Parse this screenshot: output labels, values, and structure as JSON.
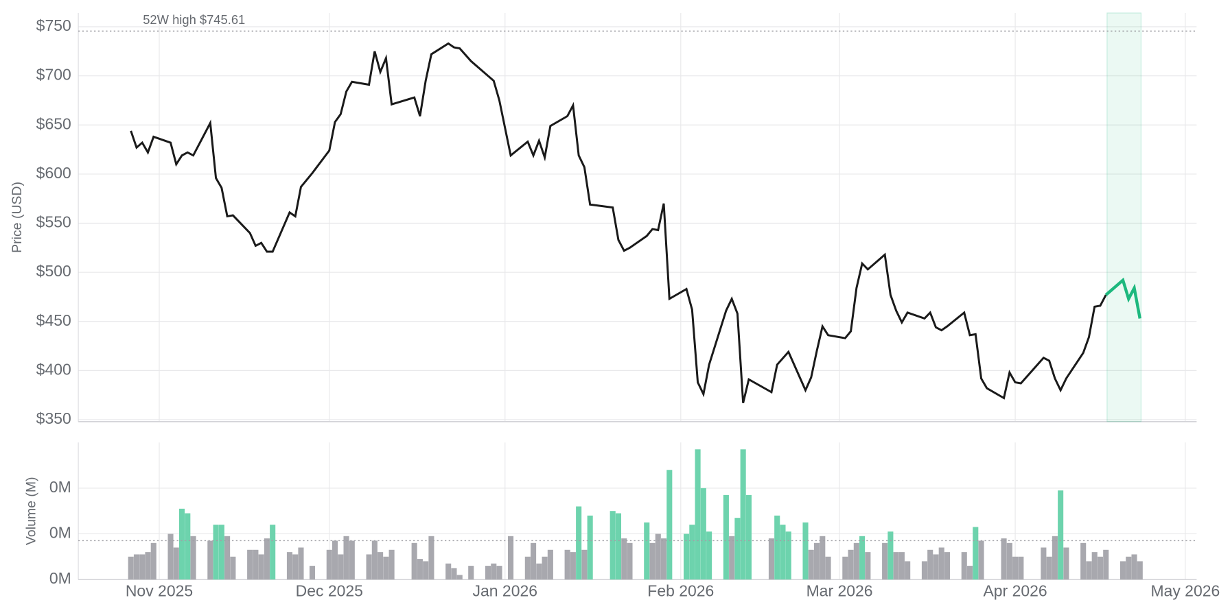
{
  "chart_data": [
    {
      "type": "line",
      "y_label": "Price (USD)",
      "xlim": [
        -14,
        183
      ],
      "xticks": [
        {
          "value": 0,
          "label": "Nov 2025"
        },
        {
          "value": 30,
          "label": "Dec 2025"
        },
        {
          "value": 61,
          "label": "Jan 2026"
        },
        {
          "value": 92,
          "label": "Feb 2026"
        },
        {
          "value": 120,
          "label": "Mar 2026"
        },
        {
          "value": 151,
          "label": "Apr 2026"
        },
        {
          "value": 181,
          "label": "May 2026"
        }
      ],
      "ylim": [
        348,
        764
      ],
      "yticks": [
        {
          "value": 350,
          "label": "$350"
        },
        {
          "value": 400,
          "label": "$400"
        },
        {
          "value": 450,
          "label": "$450"
        },
        {
          "value": 500,
          "label": "$500"
        },
        {
          "value": 550,
          "label": "$550"
        },
        {
          "value": 600,
          "label": "$600"
        },
        {
          "value": 650,
          "label": "$650"
        },
        {
          "value": 700,
          "label": "$700"
        },
        {
          "value": 750,
          "label": "$750"
        }
      ],
      "grid": true,
      "annotation": {
        "text": "52W high $745.61",
        "value": 745.61
      },
      "highlight_x": [
        167.2,
        173.2
      ],
      "series": [
        {
          "color": "#1a1a1a",
          "x": [
            -5,
            -4,
            -3,
            -2,
            -1,
            2,
            3,
            4,
            5,
            6,
            9,
            10,
            11,
            12,
            13,
            16,
            17,
            18,
            19,
            20,
            23,
            24,
            25,
            27,
            30,
            31,
            32,
            33,
            34,
            37,
            38,
            39,
            40,
            41,
            45,
            46,
            47,
            48,
            51,
            52,
            53,
            55,
            59,
            60,
            62,
            65,
            66,
            67,
            68,
            69,
            72,
            73,
            74,
            75,
            76,
            80,
            81,
            82,
            83,
            86,
            87,
            88,
            89,
            90,
            93,
            94,
            95,
            96,
            97,
            100,
            101,
            102,
            103,
            104,
            108,
            109,
            111,
            114,
            115,
            116,
            117,
            118,
            121,
            122,
            123,
            124,
            125,
            128,
            129,
            130,
            131,
            132,
            135,
            136,
            137,
            138,
            139,
            142,
            143,
            144,
            145,
            146,
            149,
            150,
            151,
            152,
            156,
            157,
            158,
            159,
            160,
            163,
            164,
            165,
            166,
            167
          ],
          "values": [
            644,
            627,
            632,
            622,
            638,
            632,
            610,
            619,
            622,
            619,
            652,
            596,
            586,
            557,
            558,
            540,
            527,
            530,
            521,
            521,
            561,
            557,
            587,
            601,
            624,
            653,
            661,
            684,
            694,
            691,
            725,
            704,
            718,
            671,
            678,
            659,
            695,
            722,
            733,
            729,
            728,
            715,
            695,
            675,
            619,
            633,
            619,
            634,
            617,
            649,
            659,
            670,
            619,
            607,
            569,
            566,
            533,
            522,
            525,
            537,
            544,
            543,
            570,
            473,
            483,
            462,
            388,
            376,
            406,
            461,
            473,
            458,
            367,
            391,
            378,
            406,
            419,
            380,
            393,
            420,
            445,
            436,
            433,
            440,
            484,
            509,
            503,
            518,
            477,
            461,
            449,
            459,
            453,
            459,
            444,
            441,
            445,
            459,
            436,
            437,
            392,
            382,
            372,
            398,
            388,
            387,
            413,
            410,
            392,
            380,
            392,
            418,
            434,
            465,
            466,
            477
          ]
        },
        {
          "color": "#1db87e",
          "x": [
            167,
            170,
            171,
            172,
            173
          ],
          "values": [
            477,
            492,
            473,
            484,
            453
          ]
        }
      ]
    },
    {
      "type": "bar",
      "y_label": "Volume (M)",
      "ylim": [
        0,
        0.6
      ],
      "yticks": [
        {
          "value": 0,
          "label": "0M"
        },
        {
          "value": 0.2,
          "label": "0M"
        },
        {
          "value": 0.4,
          "label": "0M"
        }
      ],
      "grid": true,
      "reference_line": 0.17,
      "series": [
        {
          "color": "#a8a8ae",
          "x": [
            -5,
            -4,
            -3,
            -2,
            -1,
            2,
            3,
            6,
            9,
            12,
            13,
            16,
            17,
            18,
            19,
            23,
            24,
            25,
            27,
            30,
            31,
            32,
            33,
            34,
            37,
            38,
            39,
            40,
            41,
            45,
            46,
            47,
            48,
            51,
            52,
            53,
            55,
            58,
            59,
            60,
            62,
            65,
            66,
            67,
            68,
            69,
            72,
            73,
            75,
            82,
            83,
            87,
            88,
            89,
            101,
            108,
            115,
            116,
            117,
            118,
            121,
            122,
            123,
            125,
            128,
            130,
            131,
            132,
            135,
            136,
            137,
            138,
            139,
            142,
            143,
            145,
            149,
            150,
            151,
            152,
            156,
            157,
            158,
            160,
            163,
            164,
            165,
            166,
            167,
            170,
            171,
            172,
            173
          ],
          "values": [
            0.1,
            0.11,
            0.11,
            0.12,
            0.16,
            0.2,
            0.14,
            0.19,
            0.17,
            0.19,
            0.1,
            0.13,
            0.13,
            0.11,
            0.18,
            0.12,
            0.11,
            0.14,
            0.06,
            0.13,
            0.17,
            0.11,
            0.19,
            0.17,
            0.11,
            0.17,
            0.12,
            0.1,
            0.13,
            0.16,
            0.09,
            0.08,
            0.19,
            0.07,
            0.05,
            0.02,
            0.06,
            0.06,
            0.07,
            0.06,
            0.19,
            0.1,
            0.16,
            0.07,
            0.1,
            0.13,
            0.13,
            0.12,
            0.13,
            0.18,
            0.16,
            0.16,
            0.2,
            0.18,
            0.19,
            0.18,
            0.13,
            0.16,
            0.19,
            0.1,
            0.1,
            0.13,
            0.16,
            0.12,
            0.16,
            0.12,
            0.12,
            0.08,
            0.08,
            0.13,
            0.11,
            0.14,
            0.12,
            0.12,
            0.06,
            0.17,
            0.18,
            0.16,
            0.1,
            0.1,
            0.14,
            0.1,
            0.19,
            0.14,
            0.16,
            0.08,
            0.12,
            0.1,
            0.13,
            0.08,
            0.1,
            0.11,
            0.08
          ]
        },
        {
          "color": "#6dd3ad",
          "x": [
            4,
            5,
            10,
            11,
            20,
            74,
            76,
            80,
            81,
            86,
            90,
            93,
            94,
            95,
            96,
            97,
            100,
            102,
            103,
            104,
            109,
            110,
            111,
            114,
            124,
            129,
            144,
            159
          ],
          "values": [
            0.31,
            0.29,
            0.24,
            0.24,
            0.24,
            0.32,
            0.28,
            0.3,
            0.29,
            0.25,
            0.48,
            0.2,
            0.24,
            0.57,
            0.4,
            0.21,
            0.37,
            0.27,
            0.57,
            0.37,
            0.28,
            0.24,
            0.21,
            0.25,
            0.19,
            0.21,
            0.23,
            0.39
          ]
        }
      ]
    }
  ]
}
